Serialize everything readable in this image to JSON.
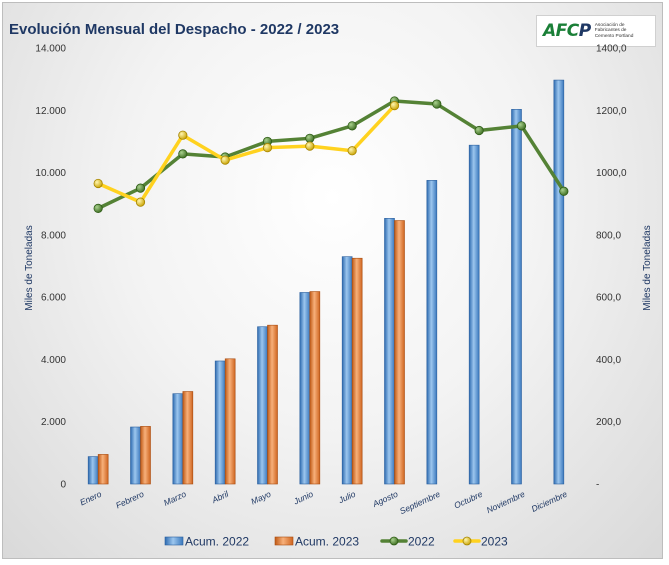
{
  "title": "Evolución Mensual del Despacho - 2022 / 2023",
  "logo": {
    "mark": "AFCP",
    "text": "Asociación de Fabricantes de Cemento Portland"
  },
  "colors": {
    "acum2022": "#5b9bd5",
    "acum2023": "#ed7d31",
    "line2022": "#548235",
    "line2023": "#ffd21f",
    "title": "#1f3864"
  },
  "chart_data": {
    "type": "bar",
    "title": "Evolución Mensual del Despacho - 2022 / 2023",
    "categories": [
      "Enero",
      "Febrero",
      "Marzo",
      "Abril",
      "Mayo",
      "Junio",
      "Julio",
      "Agosto",
      "Septiembre",
      "Octubre",
      "Noviembre",
      "Diciembre"
    ],
    "ylabel_left": "Miles de Toneladas",
    "ylabel_right": "Miles de Toneladas",
    "ylim_left": [
      0,
      14000
    ],
    "ylim_right": [
      0,
      1400
    ],
    "yticks_left": [
      "0",
      "2.000",
      "4.000",
      "6.000",
      "8.000",
      "10.000",
      "12.000",
      "14.000"
    ],
    "yticks_right": [
      "-",
      "200,0",
      "400,0",
      "600,0",
      "800,0",
      "1000,0",
      "1200,0",
      "1400,0"
    ],
    "legend_position": "bottom",
    "grid": false,
    "series": [
      {
        "name": "Acum. 2022",
        "type": "bar",
        "axis": "left",
        "values": [
          880,
          1830,
          2900,
          3950,
          5050,
          6150,
          7300,
          8530,
          9750,
          10880,
          12030,
          12970
        ]
      },
      {
        "name": "Acum. 2023",
        "type": "bar",
        "axis": "left",
        "values": [
          950,
          1850,
          2970,
          4020,
          5100,
          6180,
          7250,
          8460,
          null,
          null,
          null,
          null
        ]
      },
      {
        "name": "2022",
        "type": "line",
        "axis": "right",
        "values": [
          885,
          950,
          1060,
          1050,
          1100,
          1110,
          1150,
          1230,
          1220,
          1135,
          1150,
          940
        ]
      },
      {
        "name": "2023",
        "type": "line",
        "axis": "right",
        "values": [
          965,
          905,
          1120,
          1040,
          1080,
          1085,
          1070,
          1215,
          null,
          null,
          null,
          null
        ]
      }
    ]
  }
}
